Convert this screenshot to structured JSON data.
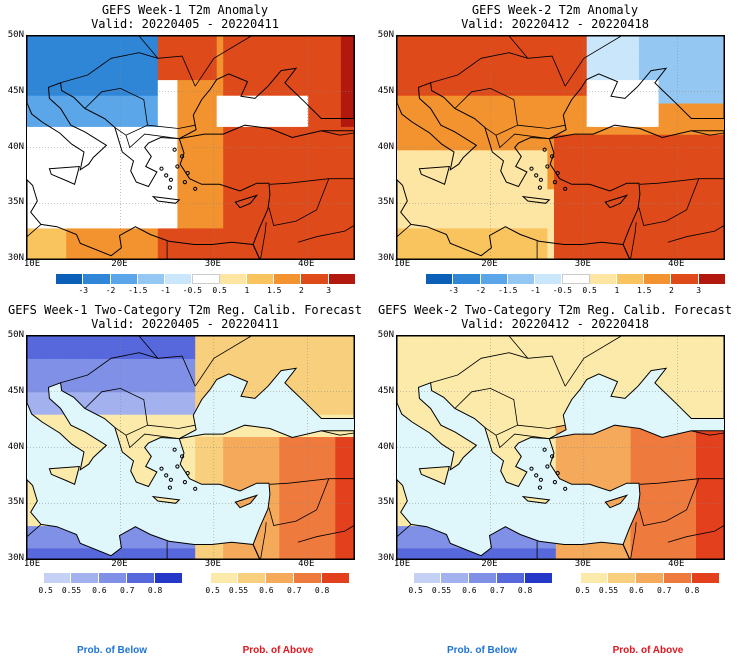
{
  "panels": [
    {
      "id": "p1",
      "kind": "anom",
      "title": "GEFS Week-1 T2m Anomaly",
      "valid": "Valid: 20220405 - 20220411"
    },
    {
      "id": "p2",
      "kind": "anom",
      "title": "GEFS Week-2 T2m Anomaly",
      "valid": "Valid: 20220412 - 20220418"
    },
    {
      "id": "p3",
      "kind": "prob",
      "title": "GEFS Week-1 Two-Category T2m Reg. Calib. Forecast",
      "valid": "Valid: 20220405 - 20220411"
    },
    {
      "id": "p4",
      "kind": "prob",
      "title": "GEFS Week-2 Two-Category T2m Reg. Calib. Forecast",
      "valid": "Valid: 20220412 - 20220418"
    }
  ],
  "lat_labels": [
    "50N",
    "45N",
    "40N",
    "35N",
    "30N"
  ],
  "lon_labels": [
    "10E",
    "20E",
    "30E",
    "40E"
  ],
  "anom_colorbar": {
    "labels": [
      "-3",
      "-2",
      "-1.5",
      "-1",
      "-0.5",
      "0.5",
      "1",
      "1.5",
      "2",
      "3"
    ],
    "colors": [
      "#0b5fb7",
      "#2f86d6",
      "#5aa6e8",
      "#94c8f2",
      "#c9e6fb",
      "#ffffff",
      "#fde6a4",
      "#f9c35d",
      "#f3932f",
      "#df4a1a",
      "#b3180f"
    ]
  },
  "prob_below": {
    "labels": [
      "0.5",
      "0.55",
      "0.6",
      "0.7",
      "0.8"
    ],
    "colors": [
      "#c5d0f5",
      "#a3b2ef",
      "#7f90e6",
      "#5767dc",
      "#2438c8"
    ],
    "legend": "Prob. of Below",
    "legend_color": "#1e73d6"
  },
  "prob_above": {
    "labels": [
      "0.5",
      "0.55",
      "0.6",
      "0.7",
      "0.8"
    ],
    "colors": [
      "#fbeaa9",
      "#f8cf7c",
      "#f4a95b",
      "#ef7a3e",
      "#e3401d"
    ],
    "legend": "Prob. of Above",
    "legend_color": "#e0161e"
  },
  "colors": {
    "sea_prob": "#dff6fb",
    "sea_anom": "#ffffff",
    "border": "#000000"
  },
  "chart_data": [
    {
      "type": "heatmap",
      "title": "GEFS Week-1 T2m Anomaly",
      "subtitle": "Valid: 20220405 - 20220411",
      "x_range": [
        "10E",
        "45E"
      ],
      "y_range": [
        "30N",
        "50N"
      ],
      "summary": {
        "north_west": "negative (-1 to -3)",
        "east_and_south": "positive (1.5 to 3)",
        "central_med": "near 0"
      }
    },
    {
      "type": "heatmap",
      "title": "GEFS Week-2 T2m Anomaly",
      "subtitle": "Valid: 20220412 - 20220418",
      "x_range": [
        "10E",
        "45E"
      ],
      "y_range": [
        "30N",
        "50N"
      ],
      "summary": {
        "north": "positive (2 to 3)",
        "northeast": "negative (-0.5 to -1.5)",
        "south_med": "0.5 to 1.5",
        "east": "positive (2 to 3)"
      }
    },
    {
      "type": "heatmap",
      "title": "GEFS Week-1 Two-Category T2m Reg. Calib. Forecast",
      "subtitle": "Valid: 20220405 - 20220411",
      "x_range": [
        "10E",
        "45E"
      ],
      "y_range": [
        "30N",
        "50N"
      ],
      "summary": {
        "north_west": "below 0.5-0.7",
        "south_west_africa": "below 0.6-0.8",
        "east": "above 0.55-0.8"
      }
    },
    {
      "type": "heatmap",
      "title": "GEFS Week-2 Two-Category T2m Reg. Calib. Forecast",
      "subtitle": "Valid: 20220412 - 20220418",
      "x_range": [
        "10E",
        "45E"
      ],
      "y_range": [
        "30N",
        "50N"
      ],
      "summary": {
        "north": "above 0.5-0.55",
        "south_west_africa": "below 0.6-0.8",
        "east": "above 0.55-0.8"
      }
    }
  ]
}
